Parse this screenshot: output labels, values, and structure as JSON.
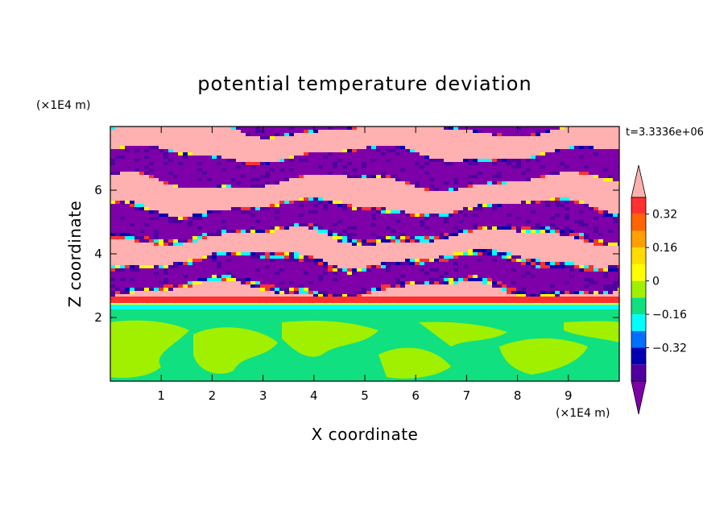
{
  "chart_data": {
    "type": "heatmap",
    "title": "potential temperature deviation",
    "xlabel": "X coordinate",
    "ylabel": "Z coordinate",
    "x_unit": "(×1E4 m)",
    "y_unit": "(×1E4 m)",
    "time_label": "t=3.3336e+06",
    "xlim": [
      0,
      10
    ],
    "ylim": [
      0,
      8
    ],
    "x_ticks": [
      "1",
      "2",
      "3",
      "4",
      "5",
      "6",
      "7",
      "8",
      "9"
    ],
    "y_ticks": [
      "2",
      "4",
      "6"
    ],
    "colorbar": {
      "levels": [
        -0.48,
        -0.4,
        -0.32,
        -0.24,
        -0.16,
        -0.08,
        0,
        0.08,
        0.16,
        0.24,
        0.32,
        0.4,
        0.48
      ],
      "labels": [
        "0.32",
        "0.16",
        "0",
        "−0.16",
        "−0.32"
      ],
      "colors": [
        "#ffb0b0",
        "#ff3030",
        "#ff6400",
        "#ffa000",
        "#ffdc00",
        "#ffff00",
        "#a0f000",
        "#10e080",
        "#00ffff",
        "#0070ff",
        "#0000b0",
        "#5000a0",
        "#7e00a8"
      ]
    },
    "field_description_palette": {
      "lower_layer": [
        "#10e080",
        "#a0f000"
      ],
      "upper_layer": [
        "#ffb0b0",
        "#7e00a8",
        "#5000a0",
        "#0000b0",
        "#00ffff",
        "#ffff00",
        "#ff3030"
      ]
    }
  }
}
